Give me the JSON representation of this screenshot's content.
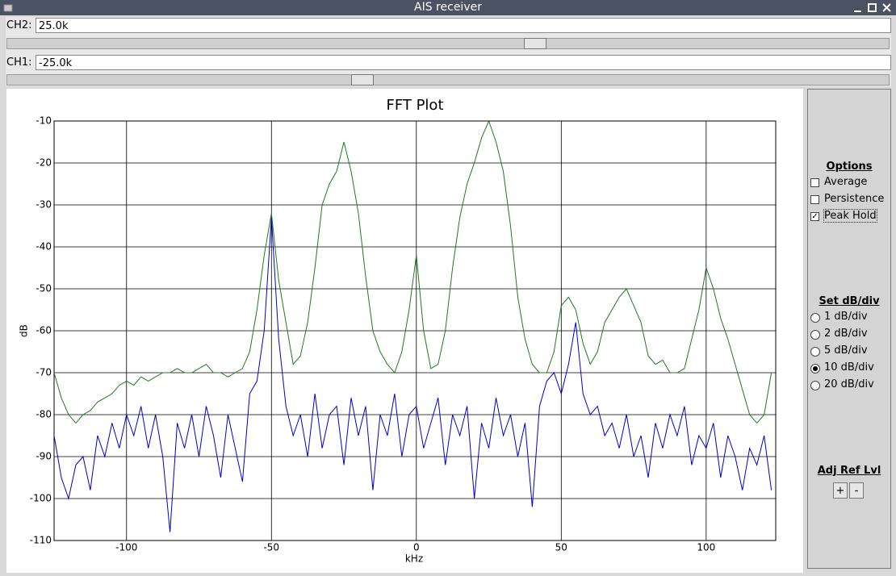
{
  "window": {
    "title": "AIS receiver"
  },
  "controls": {
    "ch2": {
      "label": "CH2:",
      "value": "25.0k"
    },
    "ch1": {
      "label": "CH1:",
      "value": "-25.0k"
    }
  },
  "chart_data": {
    "type": "line",
    "title": "FFT Plot",
    "x_label": "kHz",
    "y_label": "dB",
    "xlim": [
      -125,
      124
    ],
    "ylim": [
      -110,
      -10
    ],
    "xticks": [
      -100,
      -50,
      0,
      50,
      100
    ],
    "yticks": [
      -10,
      -20,
      -30,
      -40,
      -50,
      -60,
      -70,
      -80,
      -90,
      -100,
      -110
    ],
    "grid": true,
    "x": [
      -125,
      -122.5,
      -120,
      -117.5,
      -115,
      -112.5,
      -110,
      -107.5,
      -105,
      -102.5,
      -100,
      -97.5,
      -95,
      -92.5,
      -90,
      -87.5,
      -85,
      -82.5,
      -80,
      -77.5,
      -75,
      -72.5,
      -70,
      -67.5,
      -65,
      -62.5,
      -60,
      -57.5,
      -55,
      -52.5,
      -50,
      -47.5,
      -45,
      -42.5,
      -40,
      -37.5,
      -35,
      -32.5,
      -30,
      -27.5,
      -25,
      -22.5,
      -20,
      -17.5,
      -15,
      -12.5,
      -10,
      -7.5,
      -5,
      -2.5,
      0,
      2.5,
      5,
      7.5,
      10,
      12.5,
      15,
      17.5,
      20,
      22.5,
      25,
      27.5,
      30,
      32.5,
      35,
      37.5,
      40,
      42.5,
      45,
      47.5,
      50,
      52.5,
      55,
      57.5,
      60,
      62.5,
      65,
      67.5,
      70,
      72.5,
      75,
      77.5,
      80,
      82.5,
      85,
      87.5,
      90,
      92.5,
      95,
      97.5,
      100,
      102.5,
      105,
      107.5,
      110,
      112.5,
      115,
      117.5,
      120,
      122.5
    ],
    "series": [
      {
        "color": "#1c7c1c",
        "values": [
          -70,
          -76,
          -80,
          -82,
          -80,
          -79,
          -77,
          -76,
          -75,
          -73,
          -72,
          -73,
          -71,
          -72,
          -71,
          -70,
          -70,
          -69,
          -70,
          -70,
          -69,
          -68,
          -70,
          -70,
          -71,
          -70,
          -69,
          -65,
          -55,
          -42,
          -32,
          -48,
          -58,
          -68,
          -66,
          -58,
          -45,
          -30,
          -25,
          -22,
          -15,
          -22,
          -32,
          -47,
          -60,
          -65,
          -68,
          -70,
          -65,
          -55,
          -42,
          -60,
          -69,
          -68,
          -60,
          -45,
          -33,
          -25,
          -20,
          -14,
          -10,
          -15,
          -22,
          -35,
          -52,
          -62,
          -68,
          -70,
          -70,
          -65,
          -54,
          -52,
          -55,
          -63,
          -68,
          -65,
          -58,
          -55,
          -52,
          -50,
          -54,
          -58,
          -66,
          -68,
          -67,
          -70,
          -70,
          -69,
          -62,
          -55,
          -45,
          -50,
          -57,
          -62,
          -68,
          -74,
          -80,
          -82,
          -80,
          -70
        ]
      },
      {
        "color": "#0000cc",
        "values": [
          -85,
          -95,
          -100,
          -92,
          -90,
          -98,
          -85,
          -90,
          -82,
          -88,
          -80,
          -85,
          -78,
          -88,
          -80,
          -90,
          -108,
          -82,
          -88,
          -80,
          -90,
          -78,
          -85,
          -95,
          -80,
          -88,
          -96,
          -75,
          -72,
          -60,
          -33,
          -62,
          -78,
          -85,
          -80,
          -90,
          -75,
          -88,
          -80,
          -78,
          -92,
          -76,
          -85,
          -78,
          -98,
          -80,
          -85,
          -75,
          -90,
          -80,
          -78,
          -88,
          -82,
          -76,
          -92,
          -80,
          -85,
          -78,
          -100,
          -82,
          -88,
          -76,
          -85,
          -80,
          -90,
          -82,
          -102,
          -78,
          -72,
          -70,
          -75,
          -68,
          -58,
          -75,
          -80,
          -78,
          -85,
          -82,
          -88,
          -80,
          -90,
          -85,
          -95,
          -82,
          -88,
          -80,
          -85,
          -78,
          -92,
          -85,
          -88,
          -82,
          -95,
          -85,
          -90,
          -98,
          -88,
          -92,
          -85,
          -98
        ]
      }
    ]
  },
  "options": {
    "title": "Options",
    "checkboxes": [
      {
        "label": "Average",
        "checked": false
      },
      {
        "label": "Persistence",
        "checked": false
      },
      {
        "label": "Peak Hold",
        "checked": true
      }
    ]
  },
  "db_div": {
    "title": "Set dB/div",
    "radios": [
      {
        "label": "1 dB/div",
        "selected": false
      },
      {
        "label": "2 dB/div",
        "selected": false
      },
      {
        "label": "5 dB/div",
        "selected": false
      },
      {
        "label": "10 dB/div",
        "selected": true
      },
      {
        "label": "20 dB/div",
        "selected": false
      }
    ]
  },
  "ref_level": {
    "title": "Adj Ref Lvl",
    "buttons": [
      "+",
      "-"
    ]
  }
}
